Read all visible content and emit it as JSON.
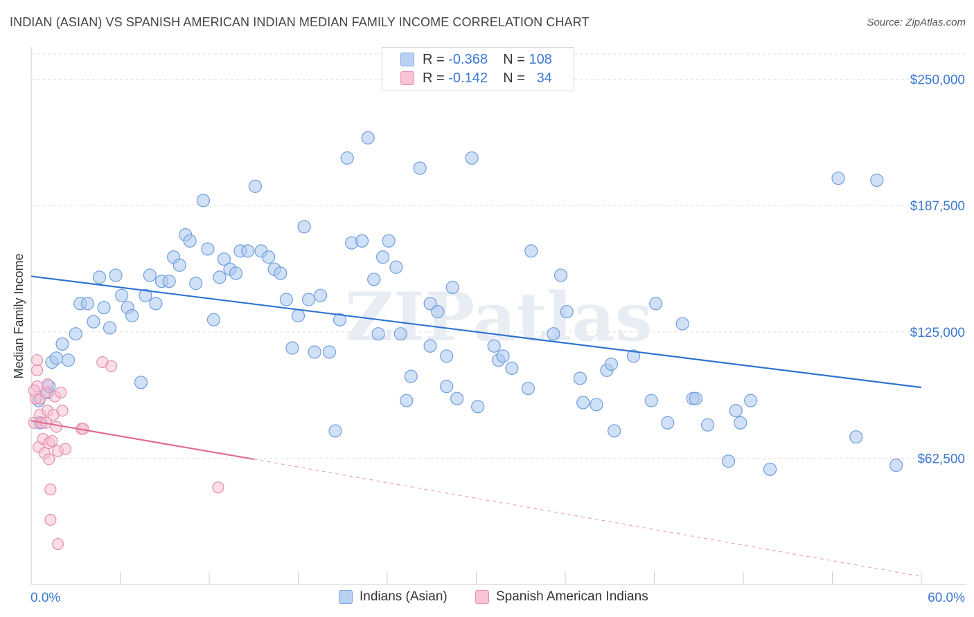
{
  "title": "INDIAN (ASIAN) VS SPANISH AMERICAN INDIAN MEDIAN FAMILY INCOME CORRELATION CHART",
  "source": "Source: ZipAtlas.com",
  "watermark": "ZIPatlas",
  "legend": {
    "rows": [
      {
        "r_label": "R =",
        "r_value": "-0.368",
        "n_label": "N =",
        "n_value": "108",
        "fill": "#b8d0f2",
        "stroke": "#7ea6e0"
      },
      {
        "r_label": "R =",
        "r_value": "-0.142",
        "n_label": "N =",
        "n_value": "34",
        "fill": "#f8c4d4",
        "stroke": "#e890ad"
      }
    ]
  },
  "colors": {
    "blue_fill": "#a9c6ee",
    "blue_stroke": "#6f9fdc",
    "blue_line": "#2f73d0",
    "pink_fill": "#f6bcd0",
    "pink_stroke": "#e68fae",
    "pink_line": "#e06a92",
    "axis_label": "#3b78d0",
    "grid": "#dddddd"
  },
  "chart_data": {
    "type": "scatter",
    "title": "INDIAN (ASIAN) VS SPANISH AMERICAN INDIAN MEDIAN FAMILY INCOME CORRELATION CHART",
    "xlabel": "",
    "ylabel": "Median Family Income",
    "xlim": [
      0,
      60
    ],
    "ylim": [
      0,
      262500
    ],
    "x_tick_labels": [
      "0.0%",
      "60.0%"
    ],
    "y_ticks": [
      62500,
      125000,
      187500,
      250000
    ],
    "y_tick_labels": [
      "$62,500",
      "$125,000",
      "$187,500",
      "$250,000"
    ],
    "grid": true,
    "legend_position": "bottom",
    "series": [
      {
        "name": "Indians (Asian)",
        "r": -0.368,
        "n": 108,
        "trend": {
          "x": [
            0,
            60
          ],
          "y": [
            152500,
            97500
          ],
          "style": "solid"
        },
        "points": [
          [
            0.5,
            91000
          ],
          [
            0.6,
            80000
          ],
          [
            1.1,
            95000
          ],
          [
            1.2,
            98000
          ],
          [
            1.4,
            110000
          ],
          [
            1.7,
            112000
          ],
          [
            2.1,
            119000
          ],
          [
            2.5,
            111000
          ],
          [
            3.0,
            124000
          ],
          [
            3.3,
            139000
          ],
          [
            3.8,
            139000
          ],
          [
            4.2,
            130000
          ],
          [
            4.6,
            152000
          ],
          [
            4.9,
            137000
          ],
          [
            5.3,
            127000
          ],
          [
            5.7,
            153000
          ],
          [
            6.1,
            143000
          ],
          [
            6.5,
            137000
          ],
          [
            6.8,
            133000
          ],
          [
            7.4,
            100000
          ],
          [
            7.7,
            143000
          ],
          [
            8.0,
            153000
          ],
          [
            8.4,
            139000
          ],
          [
            8.8,
            150000
          ],
          [
            9.3,
            150000
          ],
          [
            9.6,
            162000
          ],
          [
            10.0,
            158000
          ],
          [
            10.4,
            173000
          ],
          [
            10.7,
            170000
          ],
          [
            11.1,
            149000
          ],
          [
            11.6,
            190000
          ],
          [
            11.9,
            166000
          ],
          [
            12.3,
            131000
          ],
          [
            12.7,
            152000
          ],
          [
            13.0,
            161000
          ],
          [
            13.4,
            156000
          ],
          [
            13.8,
            154000
          ],
          [
            14.1,
            165000
          ],
          [
            14.6,
            165000
          ],
          [
            15.1,
            197000
          ],
          [
            15.5,
            165000
          ],
          [
            16.0,
            162000
          ],
          [
            16.4,
            156000
          ],
          [
            16.8,
            154000
          ],
          [
            17.2,
            141000
          ],
          [
            17.6,
            117000
          ],
          [
            18.0,
            133000
          ],
          [
            18.4,
            177000
          ],
          [
            18.7,
            141000
          ],
          [
            19.1,
            115000
          ],
          [
            19.5,
            143000
          ],
          [
            20.1,
            115000
          ],
          [
            20.5,
            76000
          ],
          [
            20.8,
            131000
          ],
          [
            21.3,
            211000
          ],
          [
            21.6,
            169000
          ],
          [
            22.3,
            170000
          ],
          [
            22.7,
            221000
          ],
          [
            23.1,
            151000
          ],
          [
            23.4,
            124000
          ],
          [
            23.7,
            162000
          ],
          [
            24.1,
            170000
          ],
          [
            24.6,
            157000
          ],
          [
            24.9,
            124000
          ],
          [
            25.3,
            91000
          ],
          [
            25.6,
            103000
          ],
          [
            26.2,
            206000
          ],
          [
            26.9,
            118000
          ],
          [
            26.9,
            139000
          ],
          [
            27.4,
            135000
          ],
          [
            28.0,
            113000
          ],
          [
            28.0,
            98000
          ],
          [
            28.4,
            147000
          ],
          [
            28.7,
            92000
          ],
          [
            29.7,
            211000
          ],
          [
            30.1,
            88000
          ],
          [
            31.2,
            118000
          ],
          [
            31.5,
            111000
          ],
          [
            31.8,
            113000
          ],
          [
            32.4,
            107000
          ],
          [
            33.5,
            97000
          ],
          [
            33.7,
            165000
          ],
          [
            35.2,
            124000
          ],
          [
            35.7,
            153000
          ],
          [
            36.1,
            135000
          ],
          [
            37.0,
            102000
          ],
          [
            37.2,
            90000
          ],
          [
            38.1,
            89000
          ],
          [
            38.8,
            106000
          ],
          [
            39.1,
            109000
          ],
          [
            39.3,
            76000
          ],
          [
            40.6,
            113000
          ],
          [
            41.8,
            91000
          ],
          [
            42.1,
            139000
          ],
          [
            42.9,
            80000
          ],
          [
            43.9,
            129000
          ],
          [
            44.6,
            92000
          ],
          [
            44.8,
            92000
          ],
          [
            45.6,
            79000
          ],
          [
            47.0,
            61000
          ],
          [
            47.5,
            86000
          ],
          [
            47.8,
            80000
          ],
          [
            48.5,
            91000
          ],
          [
            49.8,
            57000
          ],
          [
            54.4,
            201000
          ],
          [
            55.6,
            73000
          ],
          [
            58.3,
            59000
          ],
          [
            57.0,
            200000
          ]
        ]
      },
      {
        "name": "Spanish American Indians",
        "r": -0.142,
        "n": 34,
        "trend": {
          "x": [
            0,
            15
          ],
          "y": [
            81000,
            62000
          ],
          "style": "solid",
          "extended": {
            "x": [
              15,
              60
            ],
            "y": [
              62000,
              4000
            ],
            "style": "dashed"
          }
        },
        "points": [
          [
            0.2,
            80000
          ],
          [
            0.3,
            92000
          ],
          [
            0.4,
            98000
          ],
          [
            0.4,
            106000
          ],
          [
            0.4,
            111000
          ],
          [
            0.5,
            68000
          ],
          [
            0.6,
            92000
          ],
          [
            0.6,
            84000
          ],
          [
            0.7,
            80000
          ],
          [
            0.8,
            72000
          ],
          [
            0.9,
            65000
          ],
          [
            1.0,
            95000
          ],
          [
            1.0,
            80000
          ],
          [
            1.1,
            99000
          ],
          [
            1.1,
            86000
          ],
          [
            1.2,
            70000
          ],
          [
            1.2,
            62000
          ],
          [
            1.3,
            47000
          ],
          [
            1.3,
            32000
          ],
          [
            1.4,
            71000
          ],
          [
            1.5,
            84000
          ],
          [
            1.6,
            93000
          ],
          [
            1.7,
            78000
          ],
          [
            1.8,
            20000
          ],
          [
            1.8,
            66000
          ],
          [
            2.0,
            95000
          ],
          [
            2.1,
            86000
          ],
          [
            2.3,
            67000
          ],
          [
            3.4,
            77000
          ],
          [
            3.5,
            77000
          ],
          [
            4.8,
            110000
          ],
          [
            5.4,
            108000
          ],
          [
            12.6,
            48000
          ],
          [
            0.2,
            96000
          ]
        ]
      }
    ]
  }
}
